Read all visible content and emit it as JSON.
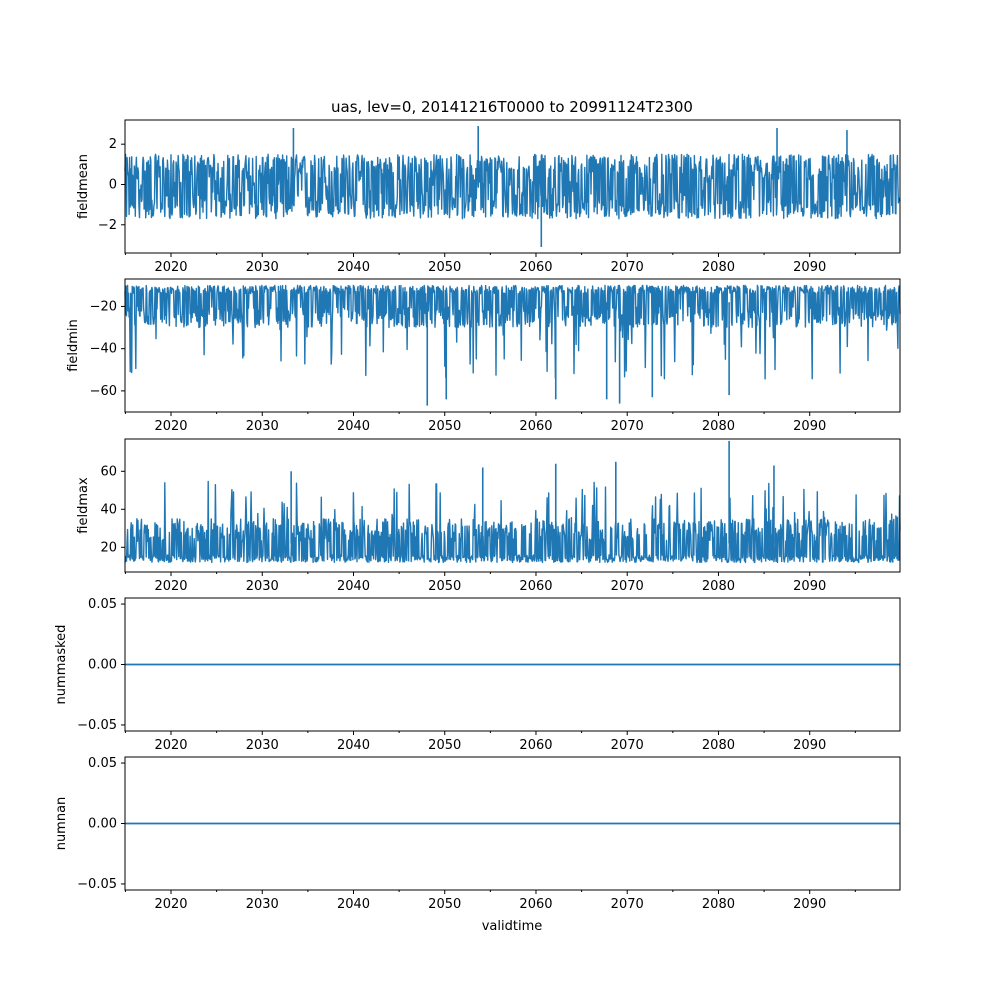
{
  "colors": {
    "series": "#1f77b4",
    "axis": "#000000",
    "background": "#ffffff"
  },
  "chart_data": {
    "type": "line",
    "title": "uas, lev=0, 20141216T0000 to 20991124T2300",
    "xlabel": "validtime",
    "x_range": [
      "2014-12-16",
      "2099-11-24"
    ],
    "x_ticks": [
      "2020",
      "2030",
      "2040",
      "2050",
      "2060",
      "2070",
      "2080",
      "2090"
    ],
    "grid": false,
    "legend": "none",
    "panels": [
      {
        "ylabel": "fieldmean",
        "ylim": [
          -3.4,
          3.2
        ],
        "y_ticks": [
          {
            "value": -2,
            "label": "−2"
          },
          {
            "value": 0,
            "label": "0"
          },
          {
            "value": 2,
            "label": "2"
          }
        ],
        "series": {
          "kind": "noisy",
          "center": -0.1,
          "typical_low": -1.6,
          "typical_high": 1.5,
          "min": -3.1,
          "max": 2.9,
          "peaks": [
            {
              "x": "2033-06",
              "y": 2.8
            },
            {
              "x": "2053-09",
              "y": 2.9
            },
            {
              "x": "2060-08",
              "y": -3.1
            },
            {
              "x": "2086-06",
              "y": 2.8
            },
            {
              "x": "2094-02",
              "y": 2.7
            }
          ]
        }
      },
      {
        "ylabel": "fieldmin",
        "ylim": [
          -70,
          -7
        ],
        "y_ticks": [
          {
            "value": -60,
            "label": "−60"
          },
          {
            "value": -40,
            "label": "−40"
          },
          {
            "value": -20,
            "label": "−20"
          }
        ],
        "series": {
          "kind": "noisy-down",
          "center": -18,
          "typical_low": -30,
          "typical_high": -10,
          "min": -67,
          "max": -10,
          "peaks": [
            {
              "x": "2048-02",
              "y": -67
            },
            {
              "x": "2069-03",
              "y": -66
            },
            {
              "x": "2067-10",
              "y": -64
            },
            {
              "x": "2050-03",
              "y": -64
            },
            {
              "x": "2062-03",
              "y": -64
            },
            {
              "x": "2072-10",
              "y": -63
            },
            {
              "x": "2081-03",
              "y": -62
            }
          ]
        }
      },
      {
        "ylabel": "fieldmax",
        "ylim": [
          7,
          77
        ],
        "y_ticks": [
          {
            "value": 20,
            "label": "20"
          },
          {
            "value": 40,
            "label": "40"
          },
          {
            "value": 60,
            "label": "60"
          }
        ],
        "series": {
          "kind": "noisy-up",
          "center": 22,
          "typical_low": 12,
          "typical_high": 35,
          "min": 10,
          "max": 76,
          "peaks": [
            {
              "x": "2081-03",
              "y": 76
            },
            {
              "x": "2068-10",
              "y": 65
            },
            {
              "x": "2062-03",
              "y": 64
            },
            {
              "x": "2086-02",
              "y": 63
            },
            {
              "x": "2054-03",
              "y": 62
            },
            {
              "x": "2033-03",
              "y": 60
            }
          ]
        }
      },
      {
        "ylabel": "nummasked",
        "ylim": [
          -0.055,
          0.055
        ],
        "y_ticks": [
          {
            "value": -0.05,
            "label": "−0.05"
          },
          {
            "value": 0.0,
            "label": "0.00"
          },
          {
            "value": 0.05,
            "label": "0.05"
          }
        ],
        "series": {
          "kind": "constant",
          "value": 0
        }
      },
      {
        "ylabel": "numnan",
        "ylim": [
          -0.055,
          0.055
        ],
        "y_ticks": [
          {
            "value": -0.05,
            "label": "−0.05"
          },
          {
            "value": 0.0,
            "label": "0.00"
          },
          {
            "value": 0.05,
            "label": "0.05"
          }
        ],
        "series": {
          "kind": "constant",
          "value": 0
        }
      }
    ]
  }
}
